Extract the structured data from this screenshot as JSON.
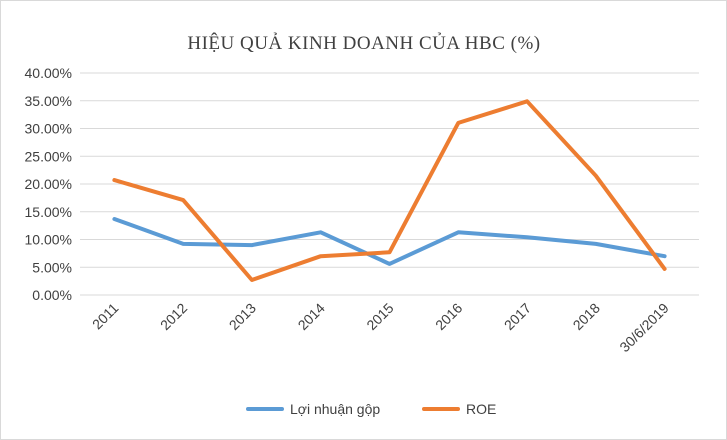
{
  "chart_data": {
    "type": "line",
    "title": "HIỆU QUẢ KINH DOANH CỦA HBC (%)",
    "categories": [
      "2011",
      "2012",
      "2013",
      "2014",
      "2015",
      "2016",
      "2017",
      "2018",
      "30/6/2019"
    ],
    "y_tick_labels": [
      "0.00%",
      "5.00%",
      "10.00%",
      "15.00%",
      "20.00%",
      "25.00%",
      "30.00%",
      "35.00%",
      "40.00%"
    ],
    "ylim": [
      0,
      40
    ],
    "grid": true,
    "legend_position": "bottom",
    "series": [
      {
        "name": "Lợi nhuận gộp",
        "color": "#5b9bd5",
        "values": [
          13.7,
          9.2,
          9.0,
          11.3,
          5.6,
          11.3,
          10.4,
          9.2,
          7.0
        ]
      },
      {
        "name": "ROE",
        "color": "#ed7d31",
        "values": [
          20.7,
          17.1,
          2.7,
          7.0,
          7.7,
          31.0,
          34.9,
          21.5,
          4.7
        ]
      }
    ]
  }
}
